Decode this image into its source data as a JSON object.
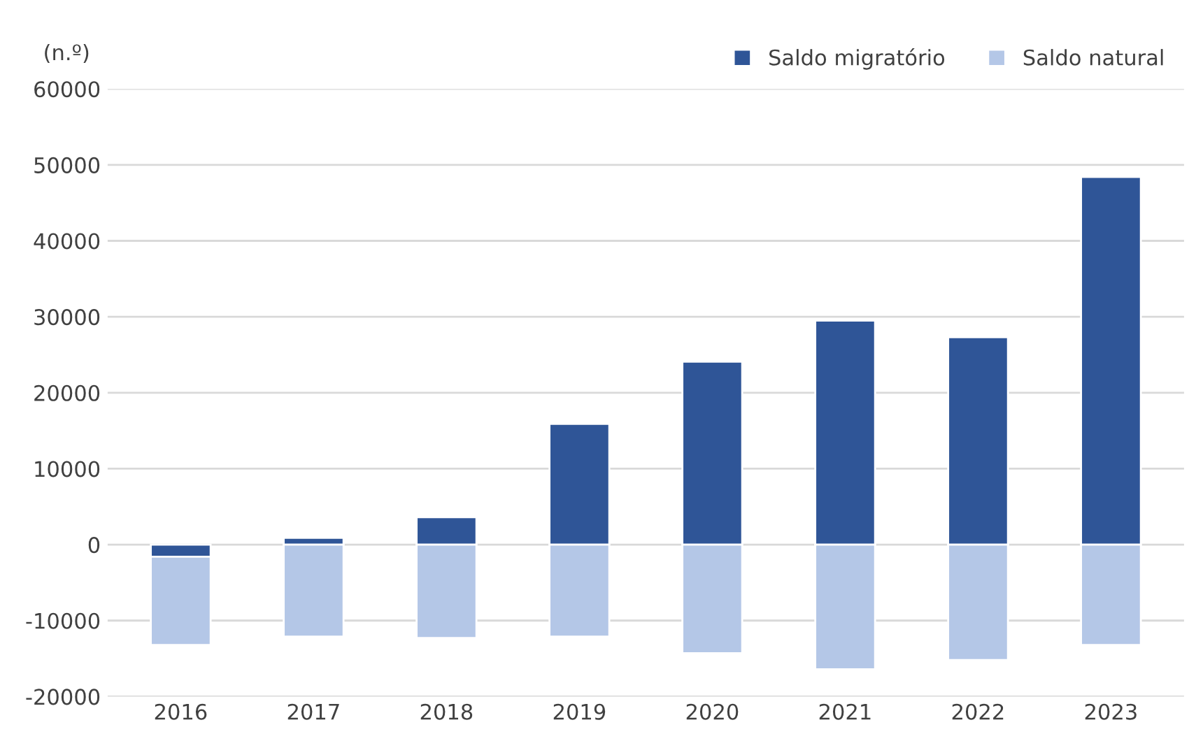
{
  "chart_data": {
    "type": "bar",
    "stacked": true,
    "ylabel": "(n.º)",
    "categories": [
      "2016",
      "2017",
      "2018",
      "2019",
      "2020",
      "2021",
      "2022",
      "2023"
    ],
    "series": [
      {
        "name": "Saldo migratório",
        "color": "#2f5597",
        "values": [
          -1600,
          900,
          3600,
          15900,
          24100,
          29500,
          27300,
          48400
        ]
      },
      {
        "name": "Saldo natural",
        "color": "#b4c7e7",
        "values": [
          -11600,
          -12100,
          -12300,
          -12100,
          -14300,
          -16400,
          -15200,
          -13200
        ]
      }
    ],
    "ylim": [
      -20000,
      60000
    ],
    "yticks": [
      -20000,
      -10000,
      0,
      10000,
      20000,
      30000,
      40000,
      50000,
      60000
    ],
    "grid": "y",
    "legend": "top right"
  }
}
